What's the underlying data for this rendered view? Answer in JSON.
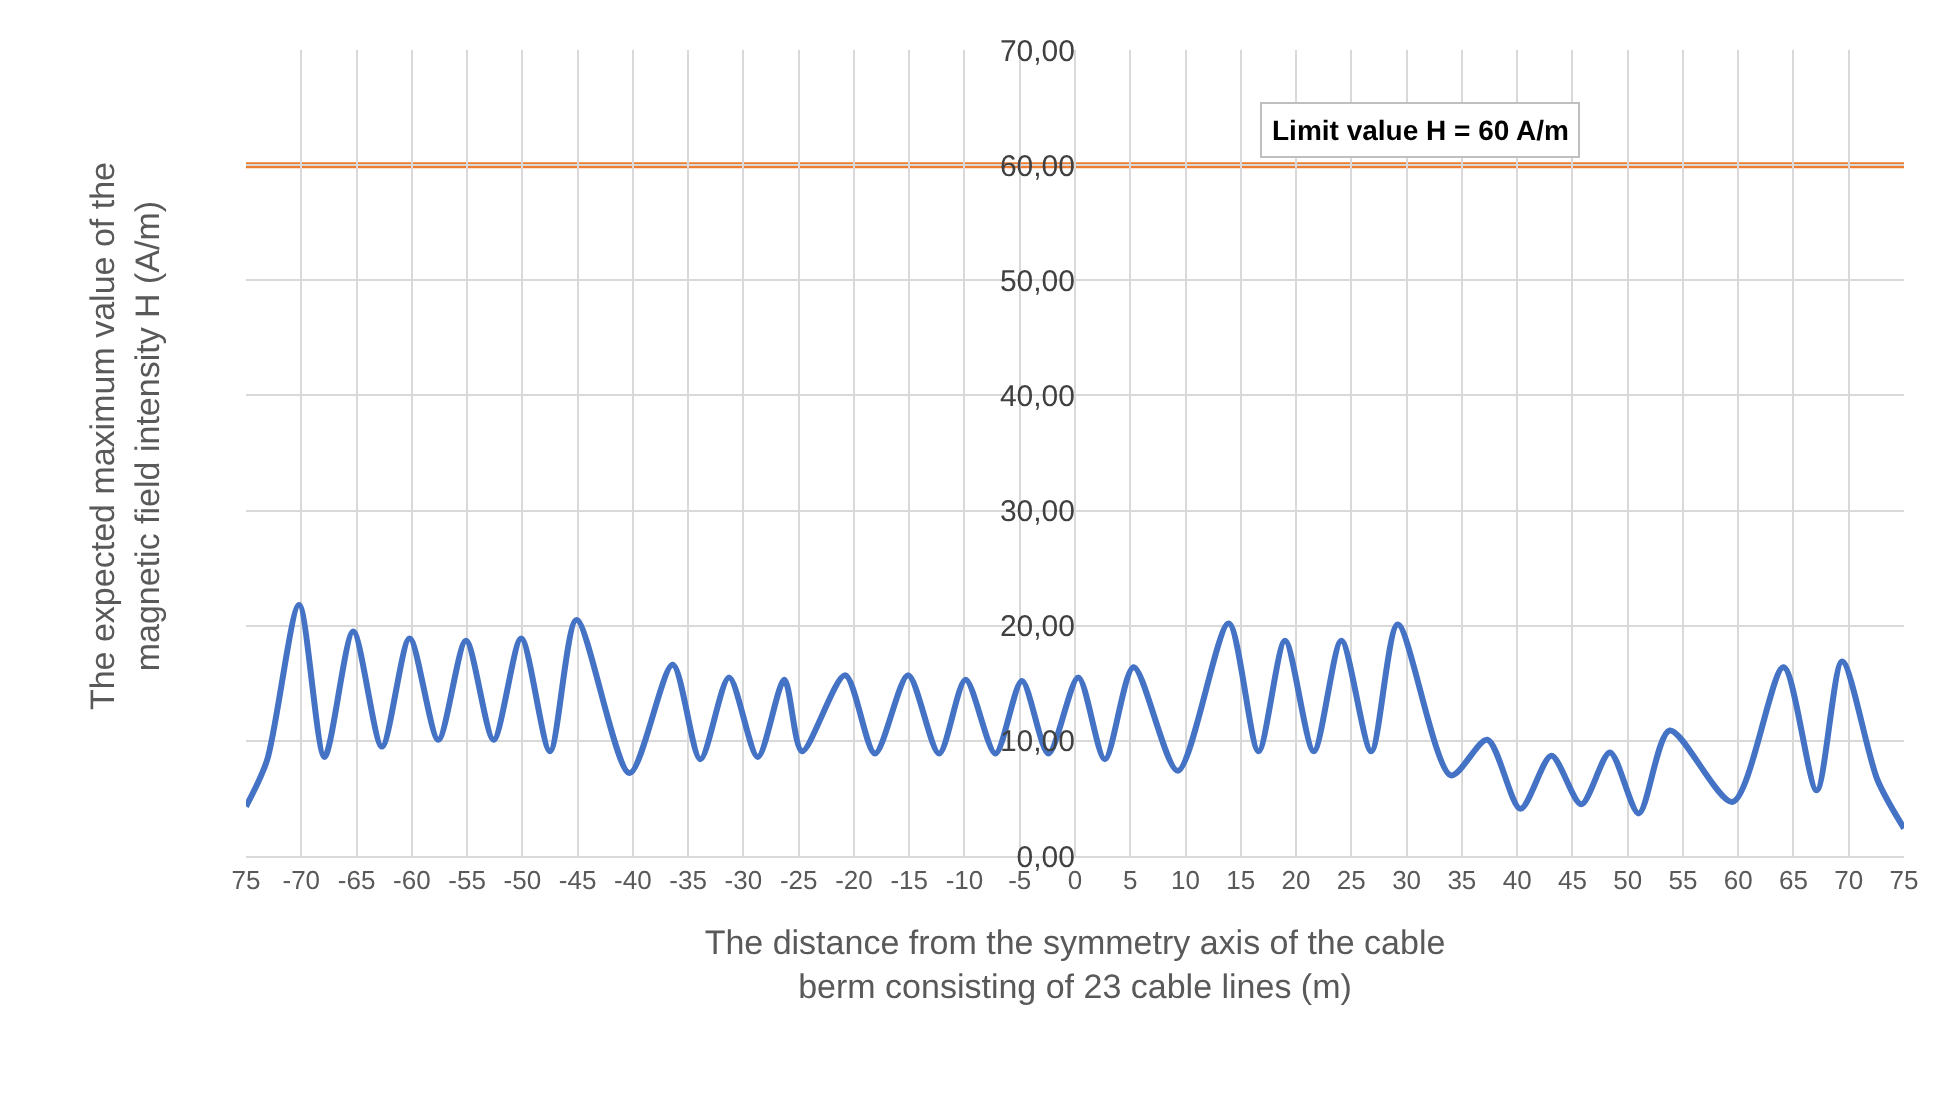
{
  "chart_data": {
    "type": "line",
    "xlabel": "The distance from the symmetry axis of the cable berm consisting of 23 cable lines (m)",
    "ylabel": "The expected maximum value of the magnetic field intensity H (A/m)",
    "x": [
      -75,
      -73.1,
      -70.2,
      -67.9,
      -65.3,
      -62.7,
      -60.2,
      -57.6,
      -55.1,
      -52.6,
      -50.1,
      -47.5,
      -45.1,
      -40.3,
      -36.4,
      -33.9,
      -31.3,
      -28.7,
      -26.3,
      -24.7,
      -20.8,
      -18.1,
      -15.1,
      -12.3,
      -9.9,
      -7.2,
      -4.8,
      -2.4,
      0.3,
      2.7,
      5.3,
      9.3,
      13.9,
      16.6,
      19,
      21.6,
      24.1,
      26.8,
      29.2,
      34,
      37.3,
      40.3,
      43.1,
      45.8,
      48.4,
      51,
      53.8,
      59.5,
      64.1,
      67.1,
      69.4,
      72.6,
      75
    ],
    "series": [
      {
        "color": "#4472c4",
        "values": [
          4.3,
          8.3,
          21.8,
          8.6,
          19.5,
          9.5,
          18.9,
          10.1,
          18.7,
          10.1,
          18.9,
          9.1,
          20.5,
          7.2,
          16.6,
          8.4,
          15.5,
          8.6,
          15.3,
          9.1,
          15.7,
          8.9,
          15.7,
          8.9,
          15.3,
          8.9,
          15.2,
          8.9,
          15.5,
          8.4,
          16.4,
          7.4,
          20.2,
          9.1,
          18.7,
          9.1,
          18.7,
          9.1,
          20.1,
          7,
          10.1,
          4.1,
          8.7,
          4.5,
          9,
          3.7,
          10.9,
          4.7,
          16.4,
          5.7,
          16.9,
          6.6,
          2.4
        ]
      }
    ],
    "xlim": [
      -75,
      75
    ],
    "xticks": [
      {
        "value": -75,
        "label": "75"
      },
      -70,
      -65,
      -60,
      -55,
      -50,
      -45,
      -40,
      -35,
      -30,
      -25,
      -20,
      -15,
      -10,
      -5,
      0,
      5,
      10,
      15,
      20,
      25,
      30,
      35,
      40,
      45,
      50,
      55,
      60,
      65,
      70,
      75
    ],
    "ylim": [
      0,
      70
    ],
    "yticks": [
      {
        "value": 0,
        "label": "0,00"
      },
      {
        "value": 10,
        "label": "10,00"
      },
      {
        "value": 20,
        "label": "20,00"
      },
      {
        "value": 30,
        "label": "30,00"
      },
      {
        "value": 40,
        "label": "40,00"
      },
      {
        "value": 50,
        "label": "50,00"
      },
      {
        "value": 60,
        "label": "60,00"
      },
      {
        "value": 70,
        "label": "70,00"
      }
    ],
    "ref_lines": [
      {
        "axis": "y",
        "value": 60,
        "label": "Limit value H = 60 A/m",
        "color": "#ed7d31"
      }
    ],
    "grid": true,
    "marker": "none",
    "line_style": "solid"
  }
}
